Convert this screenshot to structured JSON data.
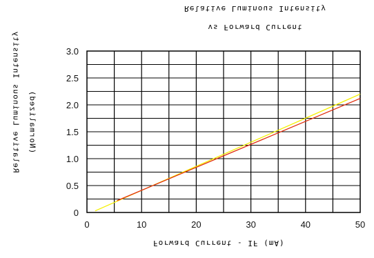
{
  "chart_data": {
    "type": "line",
    "title": "Relative Luminous Intensity",
    "subtitle": "vs Forward Current",
    "xlabel": "Forward Current - IF (mA)",
    "ylabel": "Relative Luminous Intensity",
    "ylabel_sub": "(Normalized)",
    "x_ticks": [
      "0",
      "10",
      "20",
      "30",
      "40",
      "50"
    ],
    "y_ticks": [
      "0",
      "0.5",
      "1.0",
      "1.5",
      "2.0",
      "2.5",
      "3.0"
    ],
    "xlim": [
      0,
      50
    ],
    "ylim": [
      0,
      3.0
    ],
    "grid": true,
    "series": [
      {
        "color": "#f5f000",
        "x": [
          1.5,
          50
        ],
        "y": [
          0.03,
          2.2
        ]
      },
      {
        "color": "#e03010",
        "x": [
          5.5,
          50
        ],
        "y": [
          0.22,
          2.12
        ]
      }
    ]
  }
}
